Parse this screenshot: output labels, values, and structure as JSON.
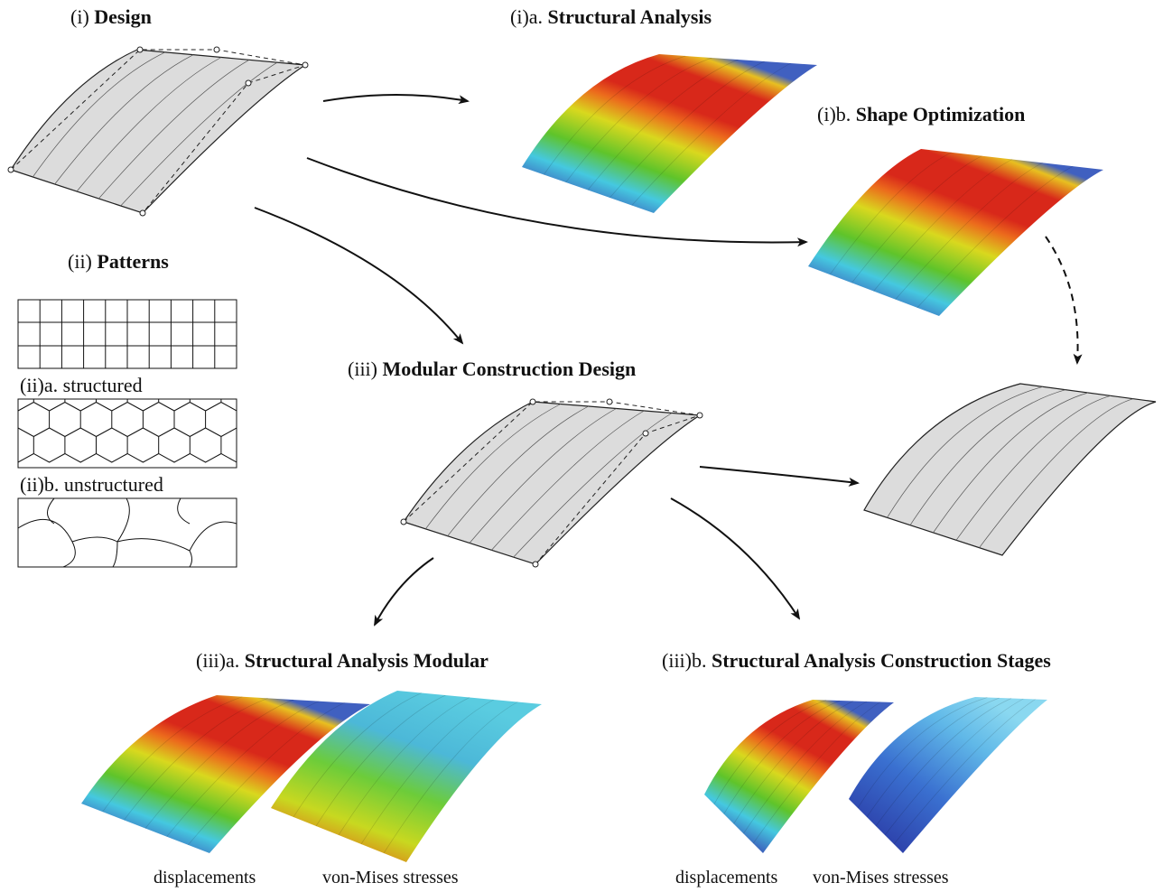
{
  "panels": {
    "design": {
      "prefix": "(i)",
      "title": "Design"
    },
    "structural_analysis": {
      "prefix": "(i)a.",
      "title": "Structural Analysis"
    },
    "shape_optimization": {
      "prefix": "(i)b.",
      "title": "Shape Optimization"
    },
    "patterns": {
      "prefix": "(ii)",
      "title": "Patterns"
    },
    "structured": {
      "label": "(ii)a. structured"
    },
    "unstructured": {
      "label": "(ii)b. unstructured"
    },
    "modular_design": {
      "prefix": "(iii)",
      "title": "Modular Construction Design"
    },
    "analysis_modular": {
      "prefix": "(iii)a.",
      "title": "Structural Analysis Modular",
      "captions": [
        "displacements",
        "von-Mises stresses"
      ]
    },
    "analysis_stages": {
      "prefix": "(iii)b.",
      "title": "Structural Analysis Construction Stages",
      "captions": [
        "displacements",
        "von-Mises stresses"
      ]
    }
  }
}
